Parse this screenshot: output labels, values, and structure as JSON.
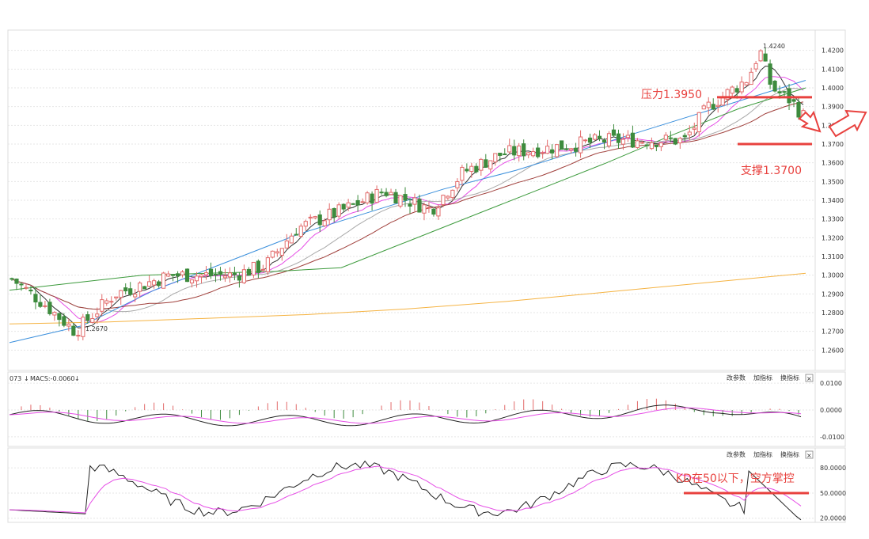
{
  "colors": {
    "up": "#e26a6a",
    "down": "#3d8b3d",
    "ma5": "#333333",
    "ma10": "#e64ee6",
    "ma20": "#a9a9a9",
    "ma30": "#a0403c",
    "ma60": "#3c9a3c",
    "ma120": "#3a8fdc",
    "ma250": "#f5b342",
    "annotation": "#e8413e",
    "grid": "#e6e6e6"
  },
  "chart_data": [
    {
      "type": "candlestick",
      "ylim": [
        1.25,
        1.43
      ],
      "y_ticks": [
        "1.4200",
        "1.4100",
        "1.4000",
        "1.3900",
        "1.3800",
        "1.3700",
        "1.3600",
        "1.3500",
        "1.3400",
        "1.3300",
        "1.3200",
        "1.3100",
        "1.3000",
        "1.2900",
        "1.2800",
        "1.2700",
        "1.2600"
      ],
      "grid": true,
      "high_label": "1.4240",
      "low_label": "1.2670",
      "support_label": "支撑1.3700",
      "support_value": 1.37,
      "resistance_label": "压力1.3950",
      "resistance_value": 1.395,
      "ma_series": [
        {
          "key": "ma250",
          "values": [
            1.274,
            1.275,
            1.277,
            1.279,
            1.282,
            1.286,
            1.291,
            1.296,
            1.301
          ]
        },
        {
          "key": "ma120",
          "values": [
            1.264,
            1.273,
            1.292,
            1.307,
            1.322,
            1.334,
            1.346,
            1.356,
            1.368,
            1.38,
            1.392,
            1.404
          ]
        },
        {
          "key": "ma60",
          "values": [
            1.292,
            1.296,
            1.3,
            1.301,
            1.302,
            1.304,
            1.318,
            1.332,
            1.346,
            1.36,
            1.375,
            1.389,
            1.4
          ]
        }
      ]
    },
    {
      "type": "bar",
      "indicator": "MACD",
      "header": "MACS:-0.0060",
      "ylim": [
        -0.013,
        0.013
      ],
      "y_ticks": [
        "0.0100",
        "0.0000",
        "-0.0100"
      ],
      "grid": true
    },
    {
      "type": "line",
      "indicator": "KD",
      "ylim": [
        15,
        100
      ],
      "y_ticks": [
        "80.0000",
        "50.0000",
        "20.0000"
      ],
      "grid": true,
      "annotation": "KD在50以下，空方掌控",
      "threshold": 50
    }
  ],
  "panel_buttons": {
    "modify_params": "改参数",
    "add_indicator": "加指标",
    "swap_indicator": "换指标",
    "close": "×"
  },
  "macd_prefix": "073"
}
